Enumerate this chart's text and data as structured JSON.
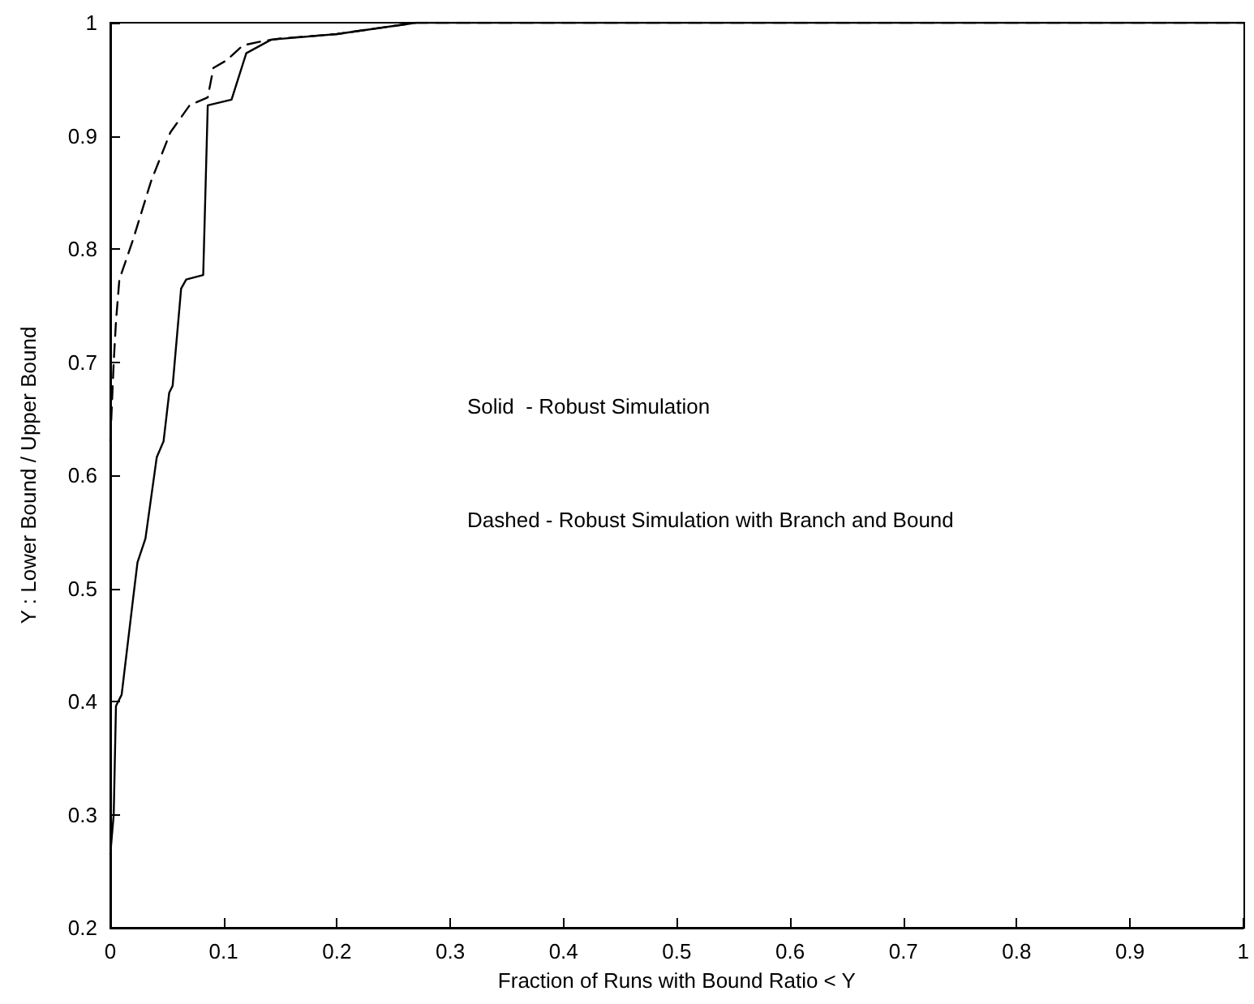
{
  "chart_data": {
    "type": "line",
    "xlabel": "Fraction of Runs with Bound Ratio < Y",
    "ylabel": "Y : Lower Bound / Upper Bound",
    "annotations": [
      "Solid  - Robust Simulation",
      "Dashed - Robust Simulation with Branch and Bound"
    ],
    "xlim": [
      0,
      1
    ],
    "xticks": [
      0,
      0.1,
      0.2,
      0.3,
      0.4,
      0.5,
      0.6,
      0.7,
      0.8,
      0.9,
      1
    ],
    "ylim": [
      0.2,
      1
    ],
    "yticks": [
      0.2,
      0.3,
      0.4,
      0.5,
      0.6,
      0.7,
      0.8,
      0.9,
      1
    ],
    "grid": false,
    "marker": "none",
    "series": [
      {
        "color": "#000000",
        "line_style": "solid",
        "x": [
          0,
          0.003,
          0.005,
          0.01,
          0.02,
          0.024,
          0.031,
          0.041,
          0.047,
          0.052,
          0.055,
          0.0625,
          0.067,
          0.082,
          0.086,
          0.107,
          0.12,
          0.142,
          0.2,
          0.27,
          1
        ],
        "values": [
          0.265,
          0.3,
          0.396,
          0.406,
          0.49,
          0.523,
          0.544,
          0.616,
          0.63,
          0.673,
          0.679,
          0.765,
          0.773,
          0.777,
          0.927,
          0.932,
          0.973,
          0.985,
          0.99,
          1,
          1
        ]
      },
      {
        "color": "#000000",
        "line_style": "dashed",
        "x": [
          0,
          0.003,
          0.005,
          0.008,
          0.02,
          0.036,
          0.053,
          0.07,
          0.086,
          0.091,
          0.103,
          0.117,
          0.136,
          0.15,
          0.2,
          0.27,
          1
        ],
        "values": [
          0.63,
          0.7,
          0.736,
          0.773,
          0.808,
          0.86,
          0.903,
          0.927,
          0.934,
          0.96,
          0.967,
          0.98,
          0.984,
          0.986,
          0.99,
          1,
          1
        ]
      }
    ]
  }
}
